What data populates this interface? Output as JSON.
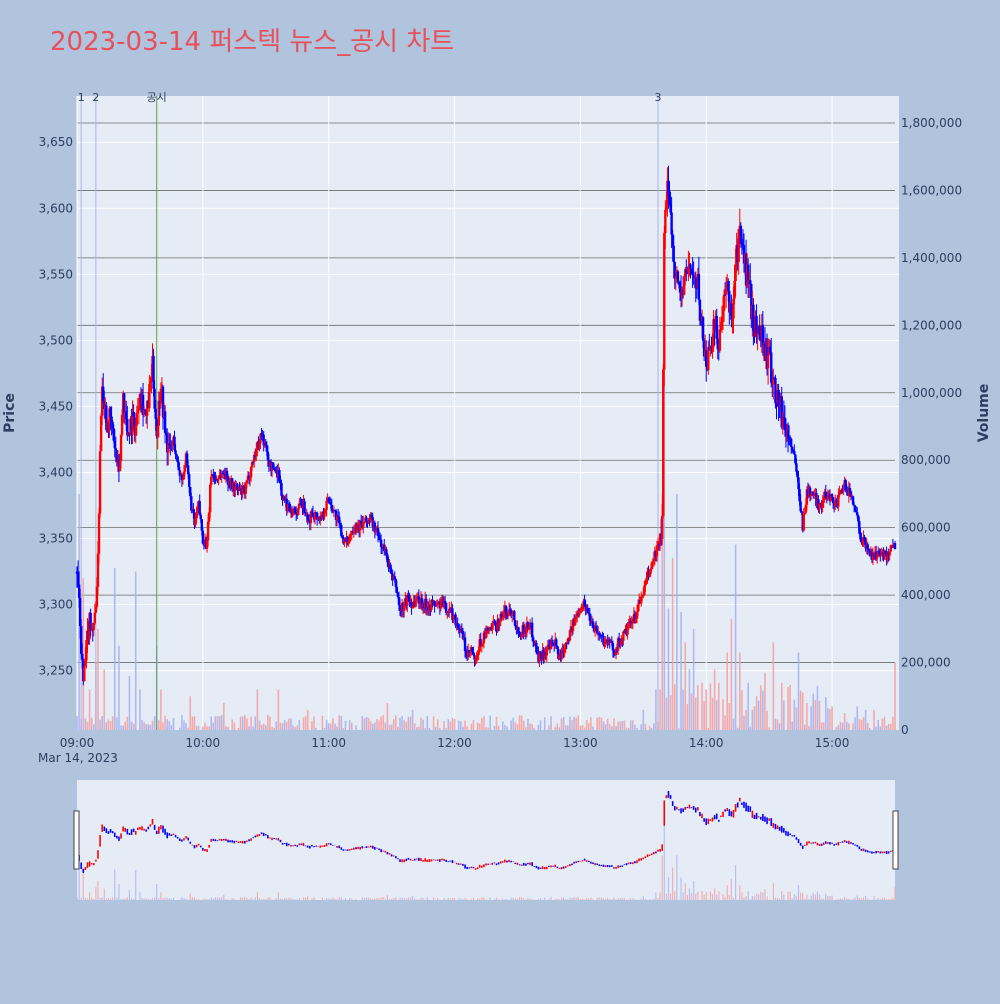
{
  "chart_data": {
    "type": "candlestick",
    "title": "2023-03-14 퍼스텍 뉴스_공시 차트",
    "title_color": "#e8505b",
    "y_label": "Price",
    "y2_label": "Volume",
    "x_date_label": "Mar 14, 2023",
    "x_ticks": [
      "09:00",
      "10:00",
      "11:00",
      "12:00",
      "13:00",
      "14:00",
      "15:00"
    ],
    "price_ticks": [
      "3,250",
      "3,300",
      "3,350",
      "3,400",
      "3,450",
      "3,500",
      "3,550",
      "3,600",
      "3,650"
    ],
    "price_tick_values": [
      3250,
      3300,
      3350,
      3400,
      3450,
      3500,
      3550,
      3600,
      3650
    ],
    "volume_ticks": [
      "0",
      "200,000",
      "400,000",
      "600,000",
      "800,000",
      "1,000,000",
      "1,200,000",
      "1,400,000",
      "1,600,000",
      "1,800,000"
    ],
    "volume_tick_values": [
      0,
      200000,
      400000,
      600000,
      800000,
      1000000,
      1200000,
      1400000,
      1600000,
      1800000
    ],
    "price_range": [
      3205,
      3685
    ],
    "volume_range": [
      0,
      1880000
    ],
    "time_range_minutes": [
      0,
      390
    ],
    "up_color": "#ff0000",
    "down_color": "#0000ff",
    "events": [
      {
        "label": "1",
        "minute": 2,
        "color": "#aab4e8"
      },
      {
        "label": "2",
        "minute": 9,
        "color": "#aab4e8"
      },
      {
        "label": "공시",
        "minute": 38,
        "color": "#59a14f"
      },
      {
        "label": "3",
        "minute": 277,
        "color": "#aab4e8"
      }
    ],
    "price_path": [
      [
        0,
        3325
      ],
      [
        3,
        3240
      ],
      [
        6,
        3290
      ],
      [
        8,
        3280
      ],
      [
        10,
        3330
      ],
      [
        11,
        3420
      ],
      [
        12,
        3470
      ],
      [
        14,
        3440
      ],
      [
        16,
        3440
      ],
      [
        18,
        3420
      ],
      [
        20,
        3395
      ],
      [
        22,
        3460
      ],
      [
        24,
        3430
      ],
      [
        26,
        3440
      ],
      [
        28,
        3435
      ],
      [
        30,
        3465
      ],
      [
        33,
        3440
      ],
      [
        36,
        3480
      ],
      [
        38,
        3430
      ],
      [
        40,
        3470
      ],
      [
        42,
        3430
      ],
      [
        44,
        3415
      ],
      [
        46,
        3425
      ],
      [
        48,
        3405
      ],
      [
        50,
        3395
      ],
      [
        52,
        3410
      ],
      [
        54,
        3380
      ],
      [
        56,
        3360
      ],
      [
        58,
        3375
      ],
      [
        60,
        3350
      ],
      [
        62,
        3345
      ],
      [
        64,
        3400
      ],
      [
        66,
        3395
      ],
      [
        70,
        3400
      ],
      [
        74,
        3390
      ],
      [
        78,
        3385
      ],
      [
        80,
        3385
      ],
      [
        84,
        3410
      ],
      [
        88,
        3430
      ],
      [
        92,
        3405
      ],
      [
        96,
        3400
      ],
      [
        98,
        3380
      ],
      [
        100,
        3375
      ],
      [
        104,
        3370
      ],
      [
        108,
        3375
      ],
      [
        110,
        3360
      ],
      [
        112,
        3370
      ],
      [
        116,
        3365
      ],
      [
        120,
        3380
      ],
      [
        124,
        3365
      ],
      [
        128,
        3345
      ],
      [
        132,
        3360
      ],
      [
        136,
        3360
      ],
      [
        140,
        3365
      ],
      [
        144,
        3350
      ],
      [
        148,
        3335
      ],
      [
        150,
        3320
      ],
      [
        152,
        3315
      ],
      [
        154,
        3295
      ],
      [
        156,
        3300
      ],
      [
        158,
        3305
      ],
      [
        160,
        3300
      ],
      [
        162,
        3305
      ],
      [
        166,
        3300
      ],
      [
        170,
        3300
      ],
      [
        174,
        3300
      ],
      [
        178,
        3295
      ],
      [
        180,
        3290
      ],
      [
        184,
        3275
      ],
      [
        186,
        3260
      ],
      [
        188,
        3265
      ],
      [
        190,
        3255
      ],
      [
        192,
        3270
      ],
      [
        196,
        3280
      ],
      [
        200,
        3285
      ],
      [
        204,
        3295
      ],
      [
        208,
        3295
      ],
      [
        210,
        3280
      ],
      [
        212,
        3280
      ],
      [
        216,
        3285
      ],
      [
        220,
        3260
      ],
      [
        224,
        3265
      ],
      [
        228,
        3270
      ],
      [
        230,
        3260
      ],
      [
        234,
        3275
      ],
      [
        238,
        3290
      ],
      [
        240,
        3300
      ],
      [
        242,
        3300
      ],
      [
        246,
        3285
      ],
      [
        250,
        3275
      ],
      [
        254,
        3270
      ],
      [
        256,
        3265
      ],
      [
        258,
        3270
      ],
      [
        262,
        3280
      ],
      [
        266,
        3290
      ],
      [
        270,
        3310
      ],
      [
        274,
        3330
      ],
      [
        276,
        3340
      ],
      [
        278,
        3350
      ],
      [
        279,
        3360
      ],
      [
        280,
        3580
      ],
      [
        282,
        3620
      ],
      [
        284,
        3570
      ],
      [
        286,
        3545
      ],
      [
        288,
        3535
      ],
      [
        290,
        3545
      ],
      [
        292,
        3560
      ],
      [
        294,
        3545
      ],
      [
        296,
        3540
      ],
      [
        300,
        3480
      ],
      [
        302,
        3500
      ],
      [
        304,
        3510
      ],
      [
        306,
        3500
      ],
      [
        308,
        3520
      ],
      [
        310,
        3540
      ],
      [
        312,
        3515
      ],
      [
        314,
        3560
      ],
      [
        316,
        3580
      ],
      [
        318,
        3560
      ],
      [
        320,
        3545
      ],
      [
        322,
        3520
      ],
      [
        324,
        3505
      ],
      [
        326,
        3510
      ],
      [
        328,
        3490
      ],
      [
        330,
        3485
      ],
      [
        332,
        3470
      ],
      [
        334,
        3455
      ],
      [
        336,
        3445
      ],
      [
        338,
        3430
      ],
      [
        340,
        3425
      ],
      [
        342,
        3410
      ],
      [
        344,
        3390
      ],
      [
        346,
        3360
      ],
      [
        348,
        3385
      ],
      [
        350,
        3385
      ],
      [
        354,
        3375
      ],
      [
        358,
        3385
      ],
      [
        362,
        3375
      ],
      [
        366,
        3390
      ],
      [
        370,
        3380
      ],
      [
        374,
        3350
      ],
      [
        376,
        3345
      ],
      [
        378,
        3340
      ],
      [
        380,
        3335
      ],
      [
        382,
        3340
      ],
      [
        384,
        3340
      ],
      [
        386,
        3335
      ],
      [
        388,
        3345
      ],
      [
        390,
        3345
      ]
    ],
    "volume_spikes": [
      [
        1,
        700000
      ],
      [
        3,
        450000
      ],
      [
        6,
        120000
      ],
      [
        9,
        200000
      ],
      [
        10,
        300000
      ],
      [
        13,
        180000
      ],
      [
        18,
        480000
      ],
      [
        20,
        250000
      ],
      [
        25,
        160000
      ],
      [
        28,
        470000
      ],
      [
        30,
        120000
      ],
      [
        38,
        250000
      ],
      [
        40,
        120000
      ],
      [
        54,
        100000
      ],
      [
        70,
        80000
      ],
      [
        86,
        120000
      ],
      [
        96,
        120000
      ],
      [
        110,
        60000
      ],
      [
        148,
        80000
      ],
      [
        160,
        60000
      ],
      [
        270,
        60000
      ],
      [
        276,
        120000
      ],
      [
        278,
        120000
      ],
      [
        279,
        700000
      ],
      [
        280,
        1250000
      ],
      [
        282,
        360000
      ],
      [
        284,
        510000
      ],
      [
        286,
        700000
      ],
      [
        288,
        350000
      ],
      [
        290,
        260000
      ],
      [
        292,
        180000
      ],
      [
        294,
        300000
      ],
      [
        298,
        140000
      ],
      [
        300,
        120000
      ],
      [
        304,
        180000
      ],
      [
        306,
        140000
      ],
      [
        310,
        230000
      ],
      [
        312,
        330000
      ],
      [
        314,
        550000
      ],
      [
        316,
        230000
      ],
      [
        320,
        140000
      ],
      [
        324,
        100000
      ],
      [
        328,
        170000
      ],
      [
        332,
        260000
      ],
      [
        336,
        140000
      ],
      [
        342,
        90000
      ],
      [
        344,
        230000
      ],
      [
        348,
        80000
      ],
      [
        350,
        70000
      ],
      [
        360,
        70000
      ],
      [
        366,
        50000
      ],
      [
        372,
        70000
      ],
      [
        376,
        60000
      ],
      [
        380,
        60000
      ],
      [
        390,
        200000
      ]
    ]
  }
}
